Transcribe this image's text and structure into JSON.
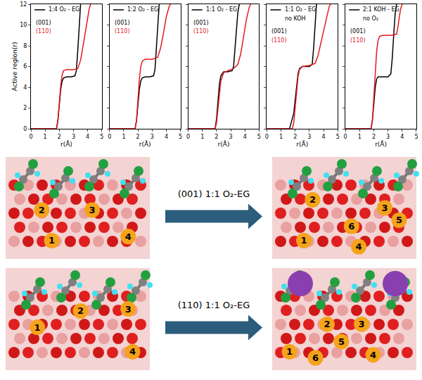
{
  "chart_data": [
    {
      "type": "line",
      "legend": "upper left",
      "annotation": [
        "1:4 O₂ - EG"
      ],
      "xlabel": "r(Å)",
      "ylabel": "Active region(r)",
      "xlim": [
        0,
        5
      ],
      "xticks": [
        0,
        1,
        2,
        3,
        4,
        5
      ],
      "ylim": [
        0,
        12
      ],
      "yticks": [
        0,
        2,
        4,
        6,
        8,
        10,
        12
      ],
      "series": [
        {
          "name": "(001)",
          "color": "#000000",
          "x": [
            0,
            1.8,
            1.9,
            2.0,
            2.1,
            2.2,
            2.3,
            2.5,
            2.8,
            3.1,
            3.2,
            3.3,
            3.4,
            3.5
          ],
          "values": [
            0,
            0,
            0.8,
            2.5,
            3.8,
            4.6,
            4.9,
            5.0,
            5.0,
            5.1,
            5.6,
            7.5,
            10,
            12
          ]
        },
        {
          "name": "(110)",
          "color": "#e41a1c",
          "x": [
            0,
            1.8,
            1.9,
            2.0,
            2.1,
            2.2,
            2.3,
            2.5,
            3.0,
            3.3,
            3.5,
            3.7,
            3.9,
            4.1,
            4.2
          ],
          "values": [
            0,
            0,
            0.8,
            2.6,
            4.2,
            5.2,
            5.6,
            5.7,
            5.7,
            5.8,
            6.6,
            8.2,
            10,
            11.5,
            12
          ]
        }
      ]
    },
    {
      "type": "line",
      "legend": "upper left",
      "annotation": [
        "1:2 O₂ - EG"
      ],
      "tick_labels": "x",
      "xlabel": "r(Å)",
      "xlim": [
        0,
        5
      ],
      "xticks": [
        0,
        1,
        2,
        3,
        4,
        5
      ],
      "ylim": [
        0,
        12
      ],
      "yticks": [
        0,
        2,
        4,
        6,
        8,
        10,
        12
      ],
      "series": [
        {
          "name": "(001)",
          "color": "#000000",
          "x": [
            0,
            1.8,
            1.9,
            2.0,
            2.1,
            2.2,
            2.3,
            2.5,
            2.8,
            3.1,
            3.2,
            3.3,
            3.4,
            3.5
          ],
          "values": [
            0,
            0,
            0.8,
            2.5,
            3.8,
            4.6,
            4.9,
            5.0,
            5.0,
            5.1,
            5.7,
            7.8,
            10.2,
            12
          ]
        },
        {
          "name": "(110)",
          "color": "#e41a1c",
          "x": [
            0,
            1.8,
            1.9,
            2.0,
            2.1,
            2.2,
            2.3,
            2.5,
            3.0,
            3.4,
            3.6,
            3.8,
            4.0,
            4.2,
            4.3
          ],
          "values": [
            0,
            0,
            0.8,
            2.8,
            4.8,
            6.0,
            6.5,
            6.7,
            6.7,
            6.9,
            7.8,
            9.2,
            10.8,
            11.8,
            12
          ]
        }
      ]
    },
    {
      "type": "line",
      "legend": "upper left",
      "annotation": [
        "1:1 O₂ - EG"
      ],
      "tick_labels": "x",
      "xlabel": "r(Å)",
      "xlim": [
        0,
        5
      ],
      "xticks": [
        0,
        1,
        2,
        3,
        4,
        5
      ],
      "ylim": [
        0,
        12
      ],
      "yticks": [
        0,
        2,
        4,
        6,
        8,
        10,
        12
      ],
      "series": [
        {
          "name": "(001)",
          "color": "#000000",
          "x": [
            0,
            1.9,
            2.0,
            2.1,
            2.2,
            2.3,
            2.5,
            2.8,
            3.1,
            3.2,
            3.3,
            3.4,
            3.5,
            3.6
          ],
          "values": [
            0,
            0,
            1.0,
            2.8,
            4.3,
            5.1,
            5.5,
            5.5,
            5.6,
            6.0,
            7.5,
            9.5,
            11.2,
            12
          ]
        },
        {
          "name": "(110)",
          "color": "#e41a1c",
          "x": [
            0,
            1.9,
            2.0,
            2.1,
            2.2,
            2.3,
            2.5,
            2.8,
            3.2,
            3.5,
            3.7,
            3.9,
            4.1,
            4.3,
            4.4
          ],
          "values": [
            0,
            0,
            0.6,
            2.0,
            3.6,
            4.6,
            5.4,
            5.6,
            5.8,
            6.2,
            7.2,
            8.8,
            10.5,
            11.7,
            12
          ]
        }
      ]
    },
    {
      "type": "line",
      "legend": "upper left",
      "annotation": [
        "1:1 O₂ - EG",
        "no KOH"
      ],
      "tick_labels": "x",
      "xlabel": "r(Å)",
      "xlim": [
        0,
        5
      ],
      "xticks": [
        0,
        1,
        2,
        3,
        4,
        5
      ],
      "ylim": [
        0,
        12
      ],
      "yticks": [
        0,
        2,
        4,
        6,
        8,
        10,
        12
      ],
      "series": [
        {
          "name": "(001)",
          "color": "#000000",
          "x": [
            0,
            1.6,
            1.7,
            1.8,
            1.9,
            2.0,
            2.1,
            2.2,
            2.3,
            2.5,
            3.0,
            3.2,
            3.3,
            3.4,
            3.5
          ],
          "values": [
            0,
            0,
            0.5,
            1.0,
            1.5,
            2.8,
            4.2,
            5.3,
            5.8,
            6.0,
            6.0,
            6.2,
            7.8,
            10,
            12
          ]
        },
        {
          "name": "(110)",
          "color": "#e41a1c",
          "x": [
            0,
            1.8,
            1.9,
            2.0,
            2.1,
            2.2,
            2.3,
            2.5,
            3.0,
            3.4,
            3.6,
            3.8,
            4.0,
            4.2,
            4.4,
            4.5
          ],
          "values": [
            0,
            0,
            0.6,
            2.2,
            3.8,
            5.0,
            5.7,
            6.0,
            6.1,
            6.3,
            7.0,
            8.2,
            9.6,
            10.8,
            11.8,
            12
          ]
        }
      ]
    },
    {
      "type": "line",
      "legend": "upper left",
      "annotation": [
        "2:1 KOH - EG",
        "no O₂"
      ],
      "tick_labels": "x",
      "xlabel": "r(Å)",
      "xlim": [
        0,
        5
      ],
      "xticks": [
        0,
        1,
        2,
        3,
        4,
        5
      ],
      "ylim": [
        0,
        12
      ],
      "yticks": [
        0,
        2,
        4,
        6,
        8,
        10,
        12
      ],
      "series": [
        {
          "name": "(001)",
          "color": "#000000",
          "x": [
            0,
            1.8,
            1.9,
            2.0,
            2.1,
            2.2,
            2.3,
            2.5,
            3.0,
            3.2,
            3.3,
            3.4,
            3.5,
            3.6
          ],
          "values": [
            0,
            0,
            0.8,
            2.5,
            4.0,
            4.8,
            5.0,
            5.0,
            5.0,
            5.3,
            6.8,
            9,
            11,
            12
          ]
        },
        {
          "name": "(110)",
          "color": "#e41a1c",
          "x": [
            0,
            1.8,
            1.9,
            2.0,
            2.1,
            2.2,
            2.3,
            2.4,
            2.6,
            3.2,
            3.6,
            3.7,
            3.8,
            3.9,
            4.0
          ],
          "values": [
            0,
            0,
            0.8,
            3.0,
            5.5,
            7.5,
            8.5,
            8.9,
            9.0,
            9.0,
            9.1,
            9.8,
            10.8,
            11.6,
            12
          ]
        }
      ]
    }
  ],
  "diagram": {
    "rows": [
      {
        "label": "(001) 1:1 O₂-EG",
        "before": [
          1,
          2,
          3,
          4
        ],
        "after": [
          2,
          3,
          1,
          6,
          4,
          5
        ]
      },
      {
        "label": "(110) 1:1 O₂-EG",
        "before": [
          1,
          2,
          3,
          4
        ],
        "after": [
          2,
          3,
          5,
          1,
          6,
          4
        ]
      }
    ]
  }
}
